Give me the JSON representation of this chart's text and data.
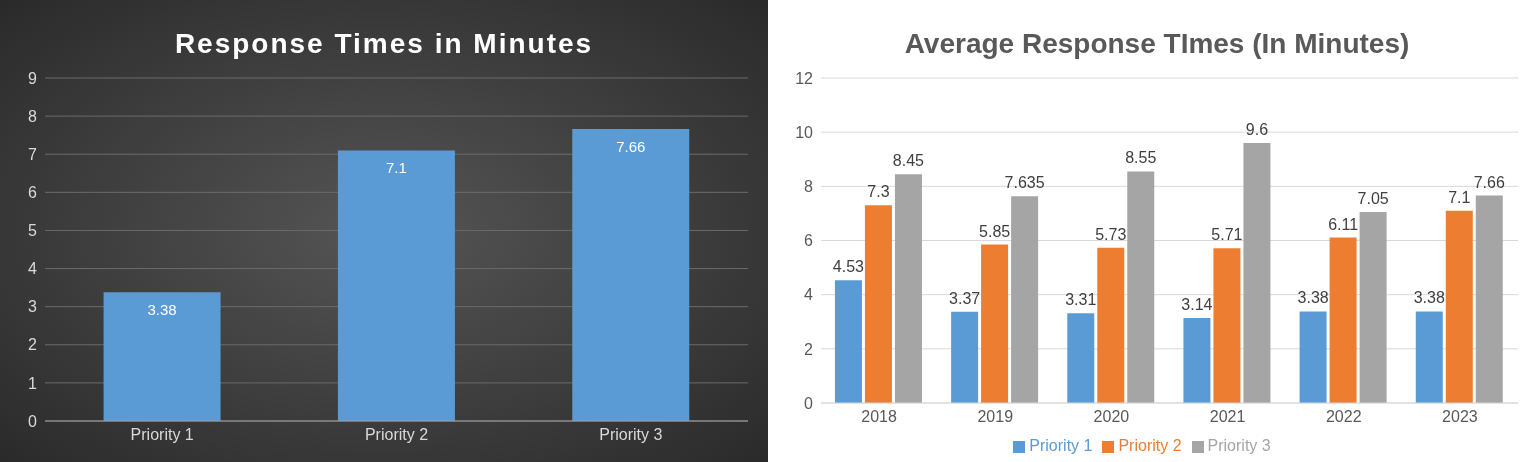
{
  "chart_data": [
    {
      "type": "bar",
      "title": "Response Times in Minutes",
      "categories": [
        "Priority 1",
        "Priority 2",
        "Priority 3"
      ],
      "values": [
        3.38,
        7.1,
        7.66
      ],
      "color": "#5b9bd5",
      "ylim": [
        0,
        9
      ],
      "yticks": [
        0,
        1,
        2,
        3,
        4,
        5,
        6,
        7,
        8,
        9
      ],
      "grid": "y",
      "data_labels": true,
      "legend": false
    },
    {
      "type": "bar",
      "title": "Average Response TImes (In Minutes)",
      "categories": [
        "2018",
        "2019",
        "2020",
        "2021",
        "2022",
        "2023"
      ],
      "series": [
        {
          "name": "Priority 1",
          "color": "#5b9bd5",
          "values": [
            4.53,
            3.37,
            3.31,
            3.14,
            3.38,
            3.38
          ]
        },
        {
          "name": "Priority 2",
          "color": "#ed7d31",
          "values": [
            7.3,
            5.85,
            5.73,
            5.71,
            6.11,
            7.1
          ]
        },
        {
          "name": "Priority 3",
          "color": "#a5a5a5",
          "values": [
            8.45,
            7.635,
            8.55,
            9.6,
            7.05,
            7.66
          ]
        }
      ],
      "ylim": [
        0,
        12
      ],
      "yticks": [
        0,
        2,
        4,
        6,
        8,
        10,
        12
      ],
      "grid": "y",
      "data_labels": true,
      "legend": "bottom"
    }
  ]
}
